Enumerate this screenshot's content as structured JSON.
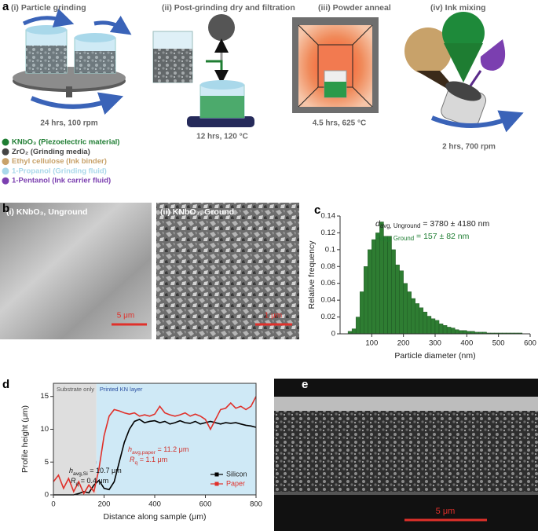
{
  "panel_labels": [
    "a",
    "b",
    "c",
    "d",
    "e"
  ],
  "panel_a": {
    "steps": [
      {
        "title": "(i) Particle grinding",
        "caption": "24 hrs, 100 rpm"
      },
      {
        "title": "(ii) Post-grinding dry and filtration",
        "caption": "12 hrs, 120 °C"
      },
      {
        "title": "(iii) Powder anneal",
        "caption": "4.5 hrs, 625 °C"
      },
      {
        "title": "(iv) Ink mixing",
        "caption": "2 hrs, 700 rpm"
      }
    ],
    "legend": [
      {
        "text": "KNbO₃ (Piezoelectric material)",
        "color": "#1e7d32"
      },
      {
        "text": "ZrO₂ (Grinding media)",
        "color": "#444444"
      },
      {
        "text": "Ethyl cellulose (Ink binder)",
        "color": "#c8a26a"
      },
      {
        "text": "1-Propanol (Grinding fluid)",
        "color": "#a9d8ea"
      },
      {
        "text": "1-Pentanol (Ink carrier fluid)",
        "color": "#7b3fb0"
      }
    ]
  },
  "panel_b": {
    "images": [
      {
        "label": "(i) KNbO₃, Unground",
        "scale_bar": "5 μm"
      },
      {
        "label": "(ii) KNbO₃, Ground",
        "scale_bar": "1 μm"
      }
    ]
  },
  "panel_e": {
    "scale_bar": "5 μm"
  },
  "chart_data": [
    {
      "type": "histogram",
      "x_label": "Particle diameter (nm)",
      "y_label": "Relative frequency",
      "annotations": [
        {
          "main": "d",
          "sub": "avg, Unground",
          "rest": " = 3780 ± 4180 nm",
          "color": "#222222"
        },
        {
          "main": "d",
          "sub": "avg, Ground",
          "rest": " = 157 ± 82 nm",
          "color": "#1e7d32"
        }
      ],
      "color": "#2e7d32",
      "bins": [
        25,
        37.5,
        50,
        62.5,
        75,
        87.5,
        100,
        112.5,
        125,
        137.5,
        150,
        162.5,
        175,
        187.5,
        200,
        212.5,
        225,
        237.5,
        250,
        262.5,
        275,
        287.5,
        300,
        312.5,
        325,
        337.5,
        350,
        362.5,
        375,
        387.5,
        400,
        412.5,
        425,
        437.5,
        450,
        462.5,
        475,
        487.5,
        500,
        512.5,
        525,
        537.5,
        550,
        562.5,
        575
      ],
      "counts": [
        0.003,
        0.006,
        0.02,
        0.05,
        0.08,
        0.1,
        0.112,
        0.12,
        0.133,
        0.116,
        0.116,
        0.1,
        0.082,
        0.075,
        0.06,
        0.05,
        0.042,
        0.036,
        0.031,
        0.026,
        0.021,
        0.018,
        0.016,
        0.012,
        0.01,
        0.008,
        0.007,
        0.005,
        0.004,
        0.004,
        0.003,
        0.003,
        0.002,
        0.002,
        0.002,
        0.001,
        0.001,
        0.001,
        0.001,
        0.001,
        0.001,
        0.001,
        0.001,
        0.001
      ],
      "xlim": [
        0,
        600
      ],
      "xticks": [
        100,
        200,
        300,
        400,
        500,
        600
      ],
      "ylim": [
        0,
        0.14
      ],
      "yticks": [
        0,
        0.02,
        0.04,
        0.06,
        0.08,
        0.1,
        0.12,
        0.14
      ]
    },
    {
      "type": "line",
      "x_label": "Distance along sample (μm)",
      "y_label": "Profile height (μm)",
      "regions": [
        {
          "label": "Substrate only",
          "start": 0,
          "end": 170,
          "color": "#dedede"
        },
        {
          "label": "Printed KN layer",
          "start": 170,
          "end": 800,
          "color": "#cfe9f6"
        }
      ],
      "annotations": [
        {
          "main": "h",
          "sub": "avg,paper",
          "rest": " = 11.2 μm",
          "color": "#d0302a"
        },
        {
          "main": "R",
          "sub": "q",
          "rest": " = 1.1 μm",
          "color": "#d0302a"
        },
        {
          "main": "h",
          "sub": "avg,Si",
          "rest": " = 10.7 μm",
          "color": "#111111"
        },
        {
          "main": "R",
          "sub": "q",
          "rest": " = 0.4 μm",
          "color": "#111111"
        }
      ],
      "x": [
        0,
        20,
        40,
        60,
        80,
        100,
        120,
        140,
        160,
        180,
        200,
        220,
        240,
        260,
        280,
        300,
        320,
        340,
        360,
        380,
        400,
        420,
        440,
        460,
        480,
        500,
        520,
        540,
        560,
        580,
        600,
        620,
        640,
        660,
        680,
        700,
        720,
        740,
        760,
        780,
        800
      ],
      "series": [
        {
          "name": "Silicon",
          "color": "#000000",
          "values": [
            0,
            0,
            0,
            0,
            0,
            0.2,
            0.5,
            0.3,
            1.5,
            2.2,
            1,
            0.8,
            2,
            5,
            8,
            10,
            11.2,
            11.5,
            11,
            11.2,
            11.3,
            11,
            11.2,
            10.8,
            11,
            11.3,
            11,
            10.9,
            11.2,
            10.8,
            11,
            11.2,
            11,
            10.8,
            11,
            10.9,
            11,
            10.8,
            10.6,
            10.5,
            10.3
          ]
        },
        {
          "name": "Paper",
          "color": "#e0302a",
          "values": [
            2,
            3,
            1,
            2.5,
            0.5,
            2,
            0.2,
            1.5,
            0.5,
            4,
            9,
            12,
            13,
            12.8,
            12.5,
            12.3,
            12.5,
            12,
            12.2,
            12,
            12.3,
            13.5,
            12.5,
            12.2,
            12,
            12.2,
            12.5,
            12,
            12.3,
            12,
            11.5,
            10,
            11.5,
            13,
            13.2,
            14,
            13.2,
            13.5,
            13,
            13.5,
            15
          ]
        }
      ],
      "xlim": [
        0,
        800
      ],
      "xticks": [
        0,
        200,
        400,
        600,
        800
      ],
      "ylim": [
        0,
        17
      ],
      "yticks": [
        0,
        5,
        10,
        15
      ],
      "legend": "lower right"
    }
  ]
}
